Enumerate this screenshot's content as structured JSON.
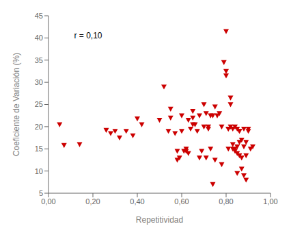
{
  "chart_data": {
    "type": "scatter",
    "x": [
      0.05,
      0.07,
      0.14,
      0.26,
      0.28,
      0.3,
      0.32,
      0.35,
      0.38,
      0.4,
      0.42,
      0.5,
      0.52,
      0.54,
      0.55,
      0.55,
      0.57,
      0.58,
      0.58,
      0.59,
      0.6,
      0.6,
      0.61,
      0.62,
      0.62,
      0.63,
      0.63,
      0.64,
      0.65,
      0.65,
      0.65,
      0.66,
      0.67,
      0.68,
      0.68,
      0.69,
      0.7,
      0.7,
      0.71,
      0.71,
      0.72,
      0.72,
      0.73,
      0.73,
      0.74,
      0.74,
      0.75,
      0.75,
      0.76,
      0.77,
      0.78,
      0.78,
      0.79,
      0.8,
      0.8,
      0.8,
      0.81,
      0.81,
      0.81,
      0.82,
      0.82,
      0.82,
      0.83,
      0.83,
      0.83,
      0.84,
      0.84,
      0.84,
      0.85,
      0.85,
      0.85,
      0.85,
      0.86,
      0.86,
      0.86,
      0.86,
      0.87,
      0.87,
      0.87,
      0.88,
      0.88,
      0.88,
      0.89,
      0.89,
      0.89,
      0.9,
      0.9,
      0.91,
      0.92
    ],
    "values": [
      20.5,
      15.8,
      16.0,
      19.2,
      18.5,
      19.0,
      17.5,
      19.0,
      18.0,
      21.8,
      20.5,
      21.5,
      29.0,
      19.0,
      24.0,
      22.0,
      18.5,
      14.5,
      12.5,
      13.0,
      22.5,
      19.0,
      14.5,
      15.0,
      14.5,
      21.5,
      14.0,
      19.5,
      20.5,
      22.0,
      23.5,
      20.5,
      19.0,
      13.0,
      22.5,
      14.5,
      25.0,
      20.0,
      23.0,
      13.0,
      20.0,
      19.5,
      22.5,
      15.0,
      22.5,
      7.0,
      24.5,
      12.5,
      22.5,
      23.0,
      11.5,
      20.0,
      34.5,
      41.5,
      31.5,
      32.5,
      19.5,
      19.5,
      15.0,
      20.0,
      25.0,
      26.5,
      15.0,
      16.0,
      19.5,
      20.0,
      15.0,
      14.5,
      15.5,
      19.5,
      14.0,
      9.5,
      16.5,
      13.5,
      19.0,
      19.0,
      10.5,
      13.0,
      17.0,
      19.5,
      15.5,
      9.0,
      16.5,
      8.0,
      13.5,
      19.5,
      19.0,
      15.0,
      15.5
    ],
    "color": "#cc0000",
    "marker": "triangle-down",
    "xlabel": "Repetitividad",
    "ylabel": "Coeficiente de Variación (%)",
    "xlim": [
      0.0,
      1.0
    ],
    "ylim": [
      5,
      45
    ],
    "xticks": [
      {
        "value": 0.0,
        "label": "0,00"
      },
      {
        "value": 0.2,
        "label": "0,20"
      },
      {
        "value": 0.4,
        "label": "0,40"
      },
      {
        "value": 0.6,
        "label": "0,60"
      },
      {
        "value": 0.8,
        "label": "0,80"
      },
      {
        "value": 1.0,
        "label": "1,00"
      }
    ],
    "yticks": [
      5,
      10,
      15,
      20,
      25,
      30,
      35,
      40,
      45
    ],
    "annotations": [
      {
        "text": "r = 0,10",
        "x": 0.1,
        "y": 40.5
      }
    ],
    "grid": false
  }
}
